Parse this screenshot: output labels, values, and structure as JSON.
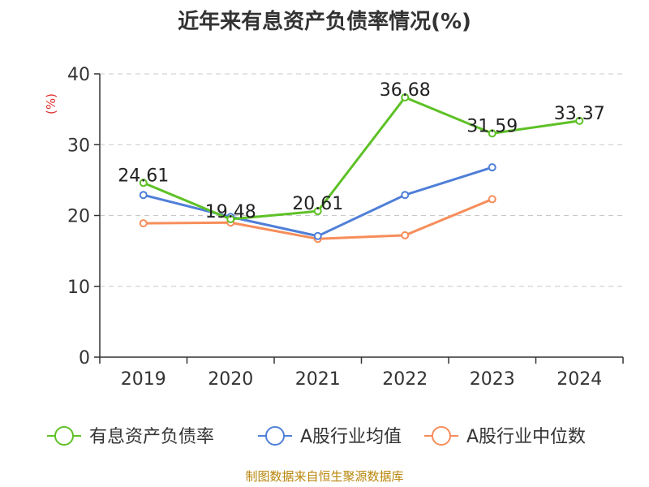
{
  "title": "近年来有息资产负债率情况(%)",
  "source": "制图数据来自恒生聚源数据库",
  "chart_data": {
    "type": "line",
    "categories": [
      "2019",
      "2020",
      "2021",
      "2022",
      "2023",
      "2024"
    ],
    "ylim": [
      0,
      40
    ],
    "yticks": [
      0,
      10,
      20,
      30,
      40
    ],
    "y_unit_label": "(%)",
    "y_unit_color": "#e03030",
    "grid": true,
    "legend_position": "bottom",
    "series": [
      {
        "name": "有息资产负债率",
        "color": "#5ec127",
        "values": [
          24.61,
          19.48,
          20.61,
          36.68,
          31.59,
          33.37
        ],
        "show_labels": true
      },
      {
        "name": "A股行业均值",
        "color": "#4f7fd8",
        "values": [
          22.9,
          19.8,
          17.1,
          22.9,
          26.8,
          null
        ],
        "show_labels": false
      },
      {
        "name": "A股行业中位数",
        "color": "#f78d5a",
        "values": [
          18.9,
          19.0,
          16.7,
          17.2,
          22.3,
          null
        ],
        "show_labels": false
      }
    ]
  }
}
